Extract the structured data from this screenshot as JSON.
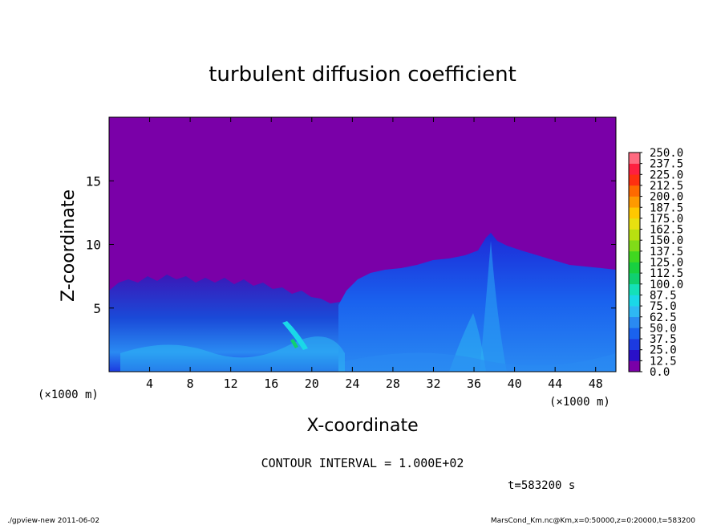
{
  "chart_data": {
    "type": "heatmap",
    "title": "turbulent diffusion coefficient",
    "xlabel": "X-coordinate",
    "ylabel": "Z-coordinate",
    "x_unit": "(×1000 m)",
    "y_unit": "(×1000 m)",
    "xlim": [
      0,
      50
    ],
    "ylim": [
      0,
      20
    ],
    "x_ticks": [
      4,
      8,
      12,
      16,
      20,
      24,
      28,
      32,
      36,
      40,
      44,
      48
    ],
    "y_ticks": [
      5,
      10,
      15
    ],
    "colorbar": {
      "levels": [
        "0.0",
        "12.5",
        "25.0",
        "37.5",
        "50.0",
        "62.5",
        "75.0",
        "87.5",
        "100.0",
        "112.5",
        "125.0",
        "137.5",
        "150.0",
        "162.5",
        "175.0",
        "187.5",
        "200.0",
        "212.5",
        "225.0",
        "237.5",
        "250.0"
      ],
      "colors": [
        "#7a00a8",
        "#2a10c8",
        "#1c3ae0",
        "#1a62ee",
        "#2a8af2",
        "#2eb8f4",
        "#1ad8e8",
        "#14e0b8",
        "#10d070",
        "#18d040",
        "#40d820",
        "#80dc18",
        "#b8e010",
        "#e8e010",
        "#ffc800",
        "#ff9a00",
        "#ff6a00",
        "#ff3010",
        "#ff2040",
        "#ff6a80"
      ]
    },
    "background_value": "0.0",
    "contour_interval": "CONTOUR INTERVAL = 1.000E+02",
    "time_label": "t=583200 s"
  },
  "footer": {
    "left": "./gpview-new  2011-06-02",
    "right": "MarsCond_Km.nc@Km,x=0:50000,z=0:20000,t=583200"
  }
}
